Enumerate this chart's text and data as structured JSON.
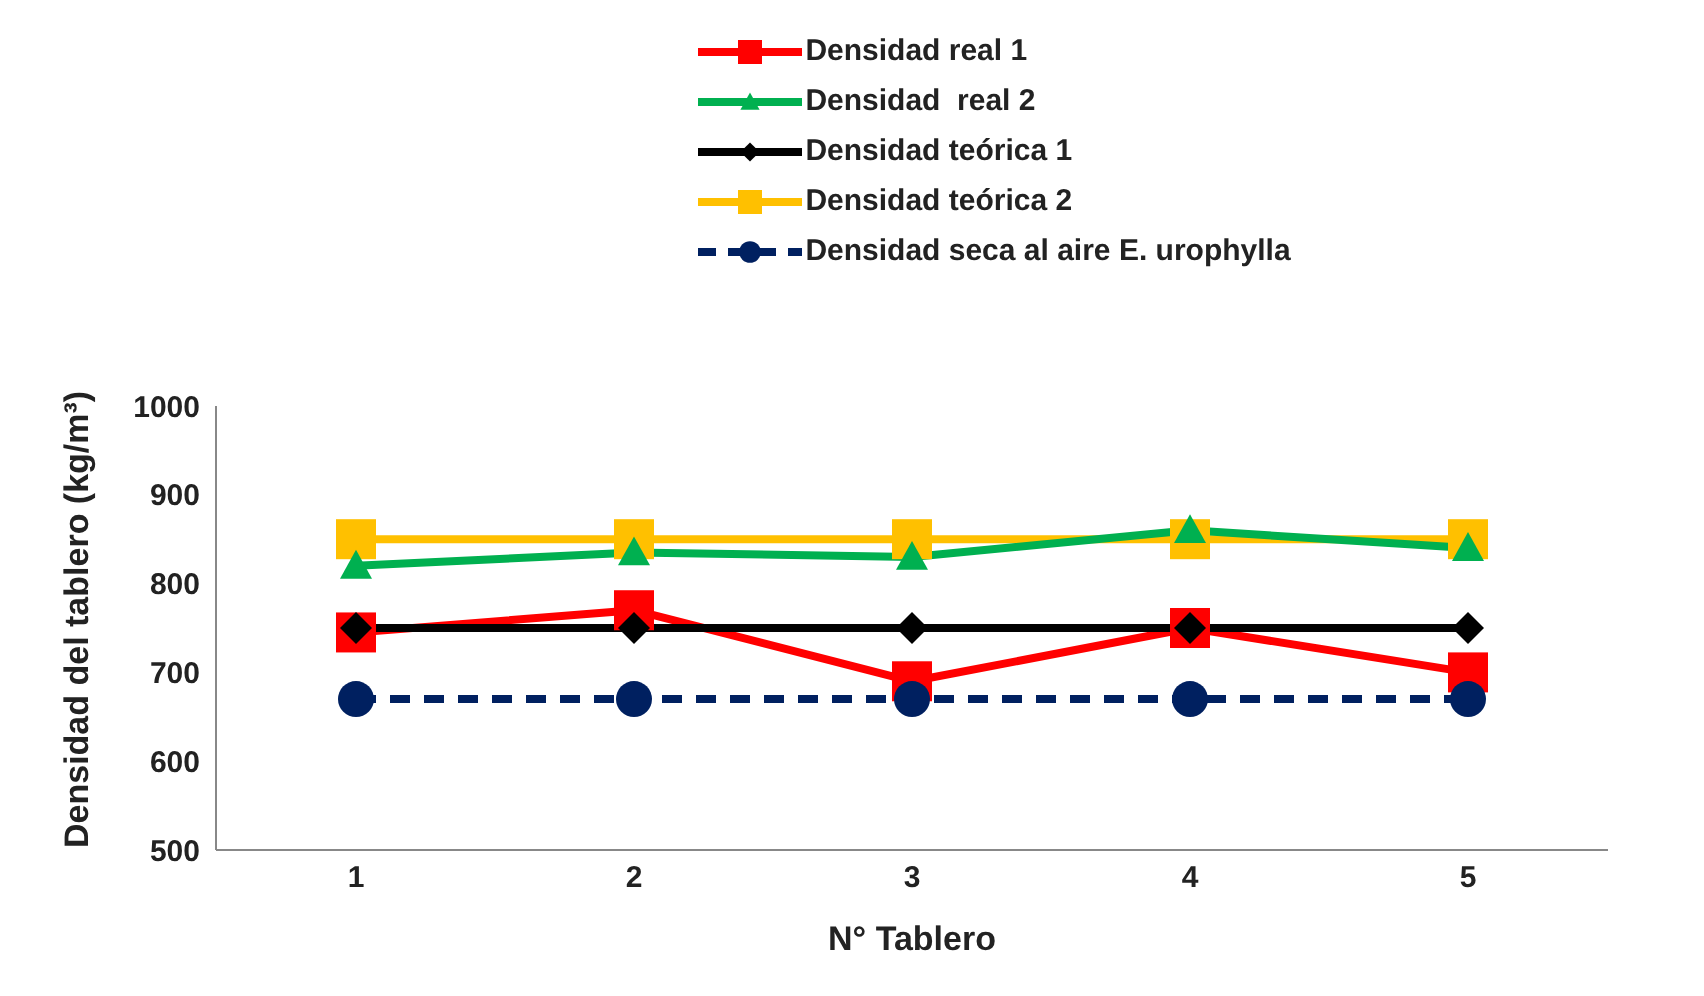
{
  "chart_data": {
    "type": "line",
    "xlabel": "N° Tablero",
    "ylabel": "Densidad del tablero (kg/m³)",
    "categories": [
      "1",
      "2",
      "3",
      "4",
      "5"
    ],
    "ylim": [
      500,
      1000
    ],
    "yticks": [
      500,
      600,
      700,
      800,
      900,
      1000
    ],
    "grid": false,
    "legend": "top",
    "series": [
      {
        "name": "Densidad real 1",
        "color": "#ff0000",
        "marker": "square",
        "line_style": "solid",
        "values": [
          745,
          770,
          690,
          750,
          700
        ]
      },
      {
        "name": "Densidad  real 2",
        "color": "#00b050",
        "marker": "triangle",
        "line_style": "solid",
        "values": [
          820,
          835,
          830,
          860,
          840
        ]
      },
      {
        "name": "Densidad teórica 1",
        "color": "#000000",
        "marker": "diamond",
        "line_style": "solid",
        "values": [
          750,
          750,
          750,
          750,
          750
        ]
      },
      {
        "name": "Densidad teórica 2",
        "color": "#ffc000",
        "marker": "square",
        "line_style": "solid",
        "values": [
          850,
          850,
          850,
          850,
          850
        ]
      },
      {
        "name": "Densidad seca al aire E. urophylla",
        "color": "#002060",
        "marker": "circle",
        "line_style": "dashed",
        "values": [
          670,
          670,
          670,
          670,
          670
        ]
      }
    ]
  }
}
